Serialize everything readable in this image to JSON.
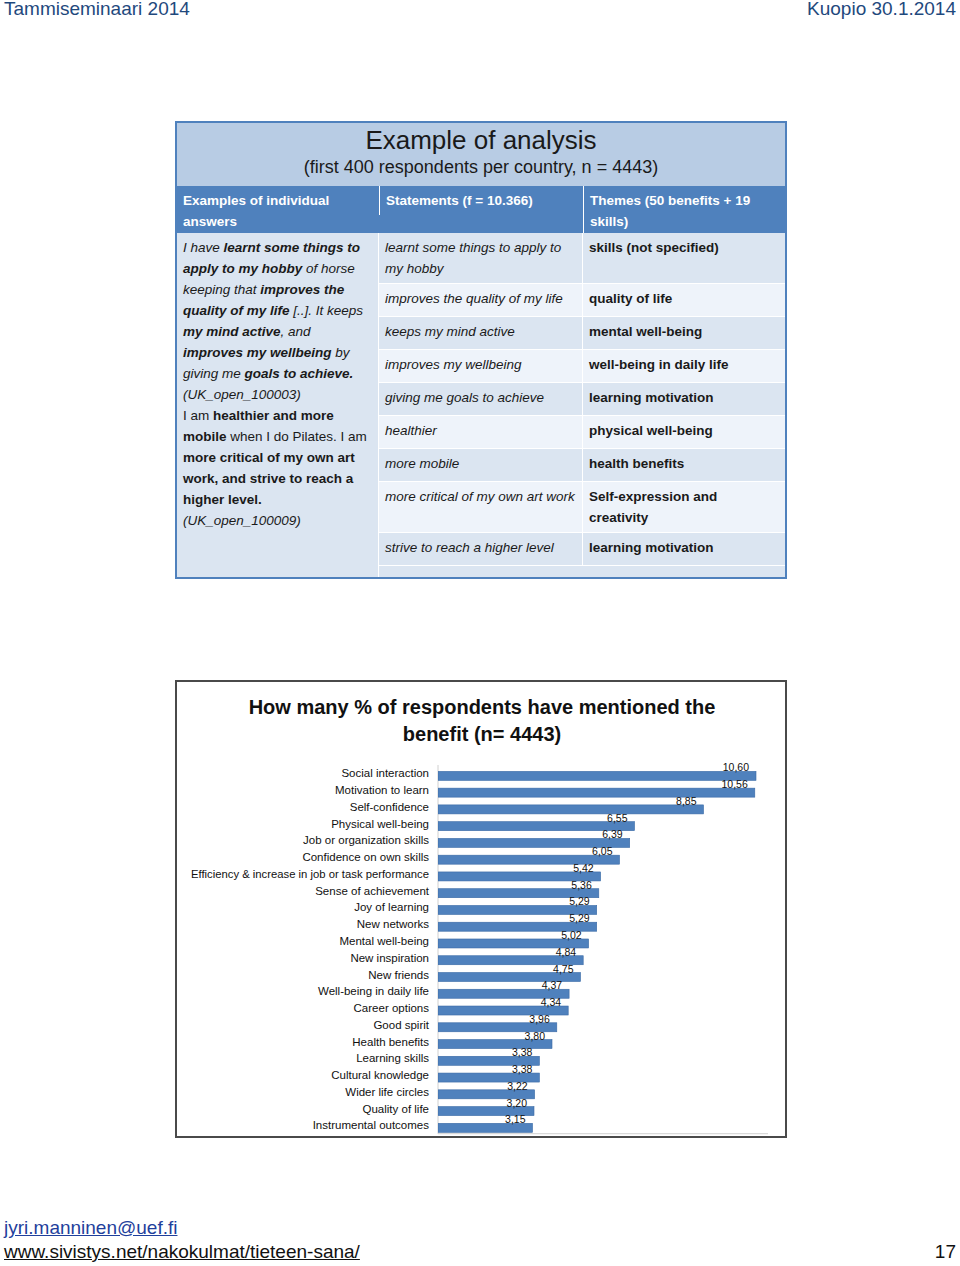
{
  "header": {
    "left": "Tammiseminaari 2014",
    "right": "Kuopio 30.1.2014"
  },
  "table": {
    "title": "Example of analysis",
    "subtitle": "(first 400 respondents per country, n = 4443)",
    "columns": [
      "Examples of individual answers",
      "Statements (f = 10.366)",
      "Themes (50 benefits + 19 skills)"
    ],
    "answers": [
      {
        "segments": [
          {
            "text": "I have ",
            "bold": false,
            "italic": true
          },
          {
            "text": "learnt some things to apply to my hobby",
            "bold": true,
            "italic": true
          },
          {
            "text": " of horse keeping that ",
            "bold": false,
            "italic": true
          },
          {
            "text": "improves the quality of my life",
            "bold": true,
            "italic": true
          },
          {
            "text": " [..]. It keeps ",
            "bold": false,
            "italic": true
          },
          {
            "text": "my mind active",
            "bold": true,
            "italic": true
          },
          {
            "text": ", and ",
            "bold": false,
            "italic": true
          },
          {
            "text": "improves my wellbeing",
            "bold": true,
            "italic": true
          },
          {
            "text": " by giving me ",
            "bold": false,
            "italic": true
          },
          {
            "text": "goals to achieve.",
            "bold": true,
            "italic": true
          }
        ],
        "source": "(UK_open_100003)"
      },
      {
        "segments": [
          {
            "text": "I am ",
            "bold": false,
            "italic": false
          },
          {
            "text": "healthier and more mobile",
            "bold": true,
            "italic": false
          },
          {
            "text": " when I do Pilates. I am ",
            "bold": false,
            "italic": false
          },
          {
            "text": "more critical of my own art work, and strive to reach a higher level.",
            "bold": true,
            "italic": false
          }
        ],
        "source": "(UK_open_100009)"
      }
    ],
    "rows": [
      [
        "learnt some things to apply to my hobby",
        "skills (not specified)"
      ],
      [
        "improves the quality of my life",
        "quality of life"
      ],
      [
        "keeps my mind active",
        "mental well-being"
      ],
      [
        "improves my wellbeing",
        "well-being in daily life"
      ],
      [
        "giving me goals to achieve",
        "learning motivation"
      ],
      [
        "healthier",
        "physical well-being"
      ],
      [
        "more mobile",
        "health benefits"
      ],
      [
        "more critical of my own art work",
        "Self-expression and creativity"
      ],
      [
        "strive to reach a higher level",
        "learning motivation"
      ]
    ]
  },
  "chart_data": {
    "type": "bar",
    "orientation": "horizontal",
    "title": "How many % of respondents have mentioned the benefit (n= 4443)",
    "categories": [
      "Social interaction",
      "Motivation to learn",
      "Self-confidence",
      "Physical well-being",
      "Job or organization skills",
      "Confidence on own skills",
      "Efficiency & increase in job or task performance",
      "Sense of achievement",
      "Joy of learning",
      "New networks",
      "Mental well-being",
      "New inspiration",
      "New friends",
      "Well-being in daily life",
      "Career options",
      "Good spirit",
      "Health benefits",
      "Learning skills",
      "Cultural knowledge",
      "Wider life circles",
      "Quality of life",
      "Instrumental outcomes"
    ],
    "values": [
      10.6,
      10.56,
      8.85,
      6.55,
      6.39,
      6.05,
      5.42,
      5.36,
      5.29,
      5.29,
      5.02,
      4.84,
      4.75,
      4.37,
      4.34,
      3.96,
      3.8,
      3.38,
      3.38,
      3.22,
      3.2,
      3.15
    ],
    "value_labels": [
      "10,60",
      "10,56",
      "8,85",
      "6,55",
      "6,39",
      "6,05",
      "5,42",
      "5,36",
      "5,29",
      "5,29",
      "5,02",
      "4,84",
      "4,75",
      "4,37",
      "4,34",
      "3,96",
      "3,80",
      "3,38",
      "3,38",
      "3,22",
      "3,20",
      "3,15"
    ],
    "color": "#4f81bd",
    "data_labels": true,
    "tick_labels": "y",
    "grid": false,
    "xlim": [
      0,
      11
    ],
    "xticks": []
  },
  "footer": {
    "email": "jyri.manninen@uef.fi",
    "url": "www.sivistys.net/nakokulmat/tieteen-sana/",
    "page": "17"
  }
}
